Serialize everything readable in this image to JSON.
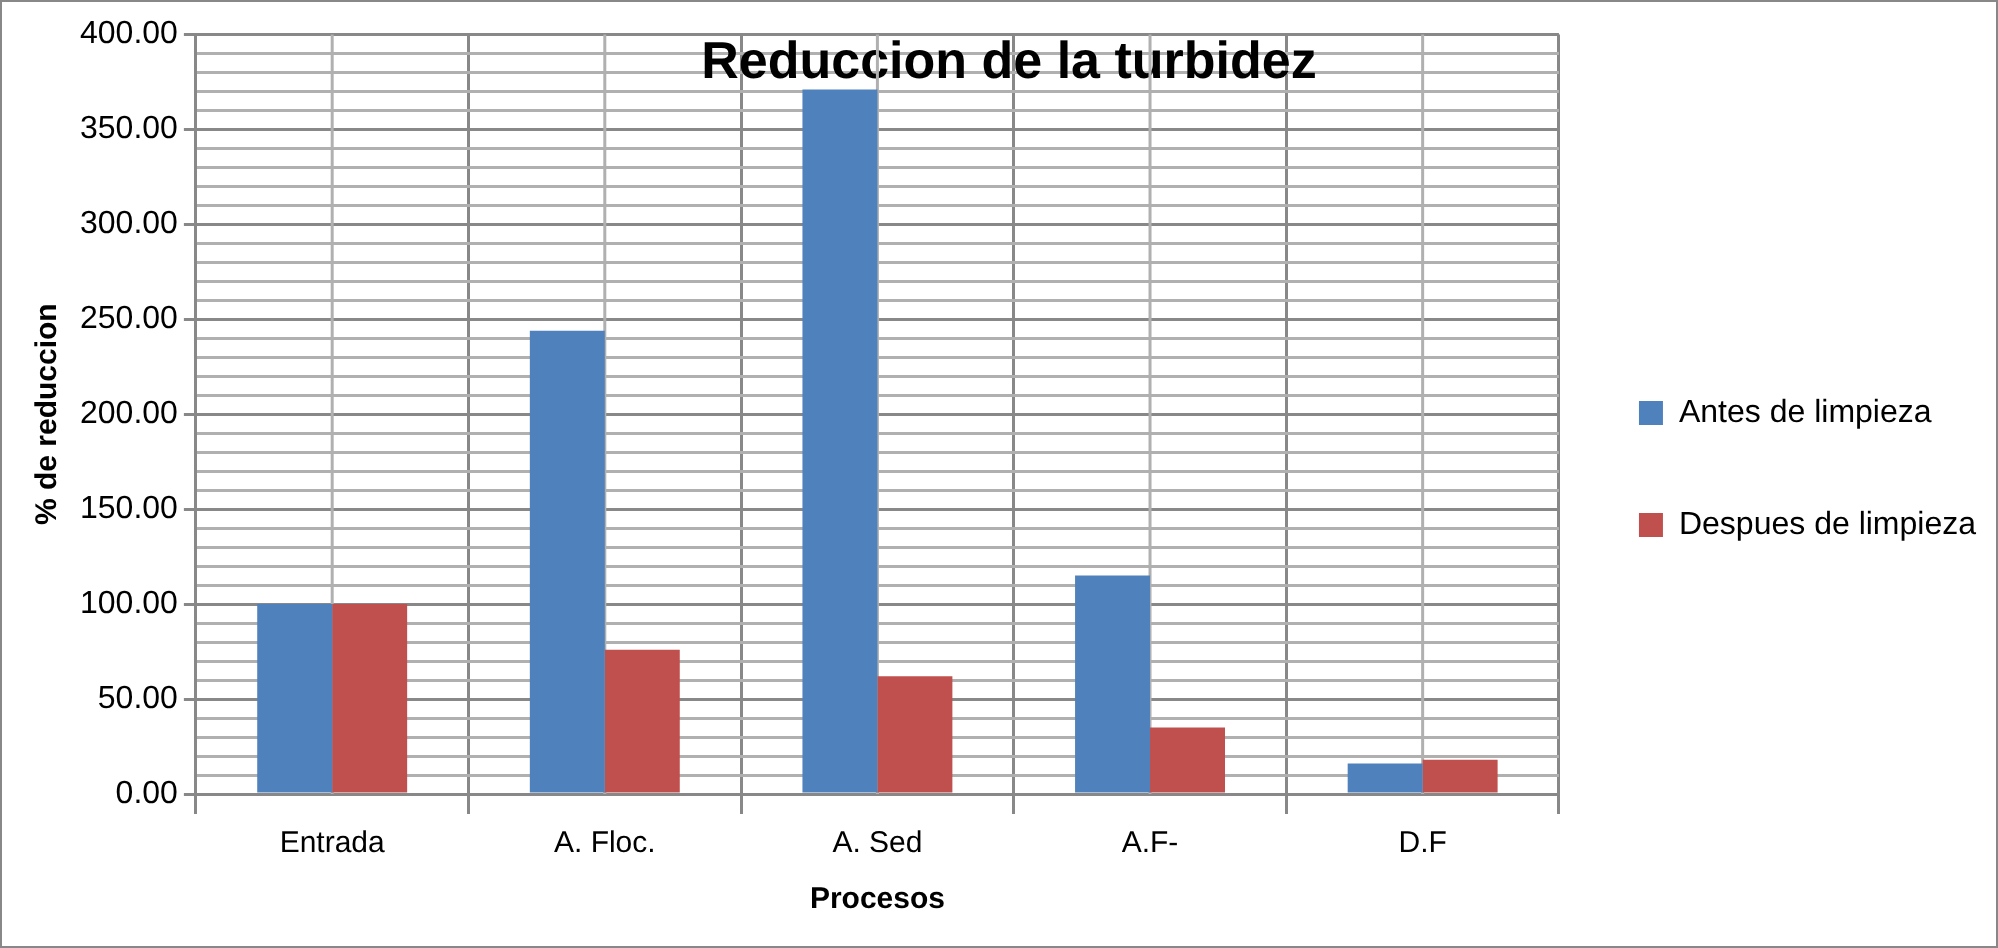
{
  "chart_data": {
    "type": "bar",
    "title": "Reduccion de la turbidez",
    "xlabel": "Procesos",
    "ylabel": "% de reduccion",
    "categories": [
      "Entrada",
      "A. Floc.",
      "A. Sed",
      "A.F-",
      "D.F"
    ],
    "series": [
      {
        "name": "Antes de limpieza",
        "color": "#4f81bd",
        "values": [
          100,
          244,
          371,
          115,
          16
        ]
      },
      {
        "name": "Despues de limpieza",
        "color": "#c0504d",
        "values": [
          100,
          76,
          62,
          35,
          18
        ]
      }
    ],
    "ylim": [
      0,
      400
    ],
    "yticks": [
      {
        "value": 0,
        "label": "0.00"
      },
      {
        "value": 10,
        "label": null
      },
      {
        "value": 20,
        "label": null
      },
      {
        "value": 30,
        "label": null
      },
      {
        "value": 40,
        "label": null
      },
      {
        "value": 50,
        "label": "50.00"
      },
      {
        "value": 60,
        "label": null
      },
      {
        "value": 70,
        "label": null
      },
      {
        "value": 80,
        "label": null
      },
      {
        "value": 90,
        "label": null
      },
      {
        "value": 100,
        "label": "100.00"
      },
      {
        "value": 110,
        "label": null
      },
      {
        "value": 120,
        "label": null
      },
      {
        "value": 130,
        "label": null
      },
      {
        "value": 140,
        "label": null
      },
      {
        "value": 150,
        "label": "150.00"
      },
      {
        "value": 160,
        "label": null
      },
      {
        "value": 170,
        "label": null
      },
      {
        "value": 180,
        "label": null
      },
      {
        "value": 190,
        "label": null
      },
      {
        "value": 200,
        "label": "200.00"
      },
      {
        "value": 210,
        "label": null
      },
      {
        "value": 220,
        "label": null
      },
      {
        "value": 230,
        "label": null
      },
      {
        "value": 240,
        "label": null
      },
      {
        "value": 250,
        "label": "250.00"
      },
      {
        "value": 260,
        "label": null
      },
      {
        "value": 270,
        "label": null
      },
      {
        "value": 280,
        "label": null
      },
      {
        "value": 290,
        "label": null
      },
      {
        "value": 300,
        "label": "300.00"
      },
      {
        "value": 310,
        "label": null
      },
      {
        "value": 320,
        "label": null
      },
      {
        "value": 330,
        "label": null
      },
      {
        "value": 340,
        "label": null
      },
      {
        "value": 350,
        "label": "350.00"
      },
      {
        "value": 360,
        "label": null
      },
      {
        "value": 370,
        "label": null
      },
      {
        "value": 380,
        "label": null
      },
      {
        "value": 390,
        "label": null
      },
      {
        "value": 400,
        "label": "400.00"
      }
    ],
    "grid": true,
    "legend": "right"
  }
}
